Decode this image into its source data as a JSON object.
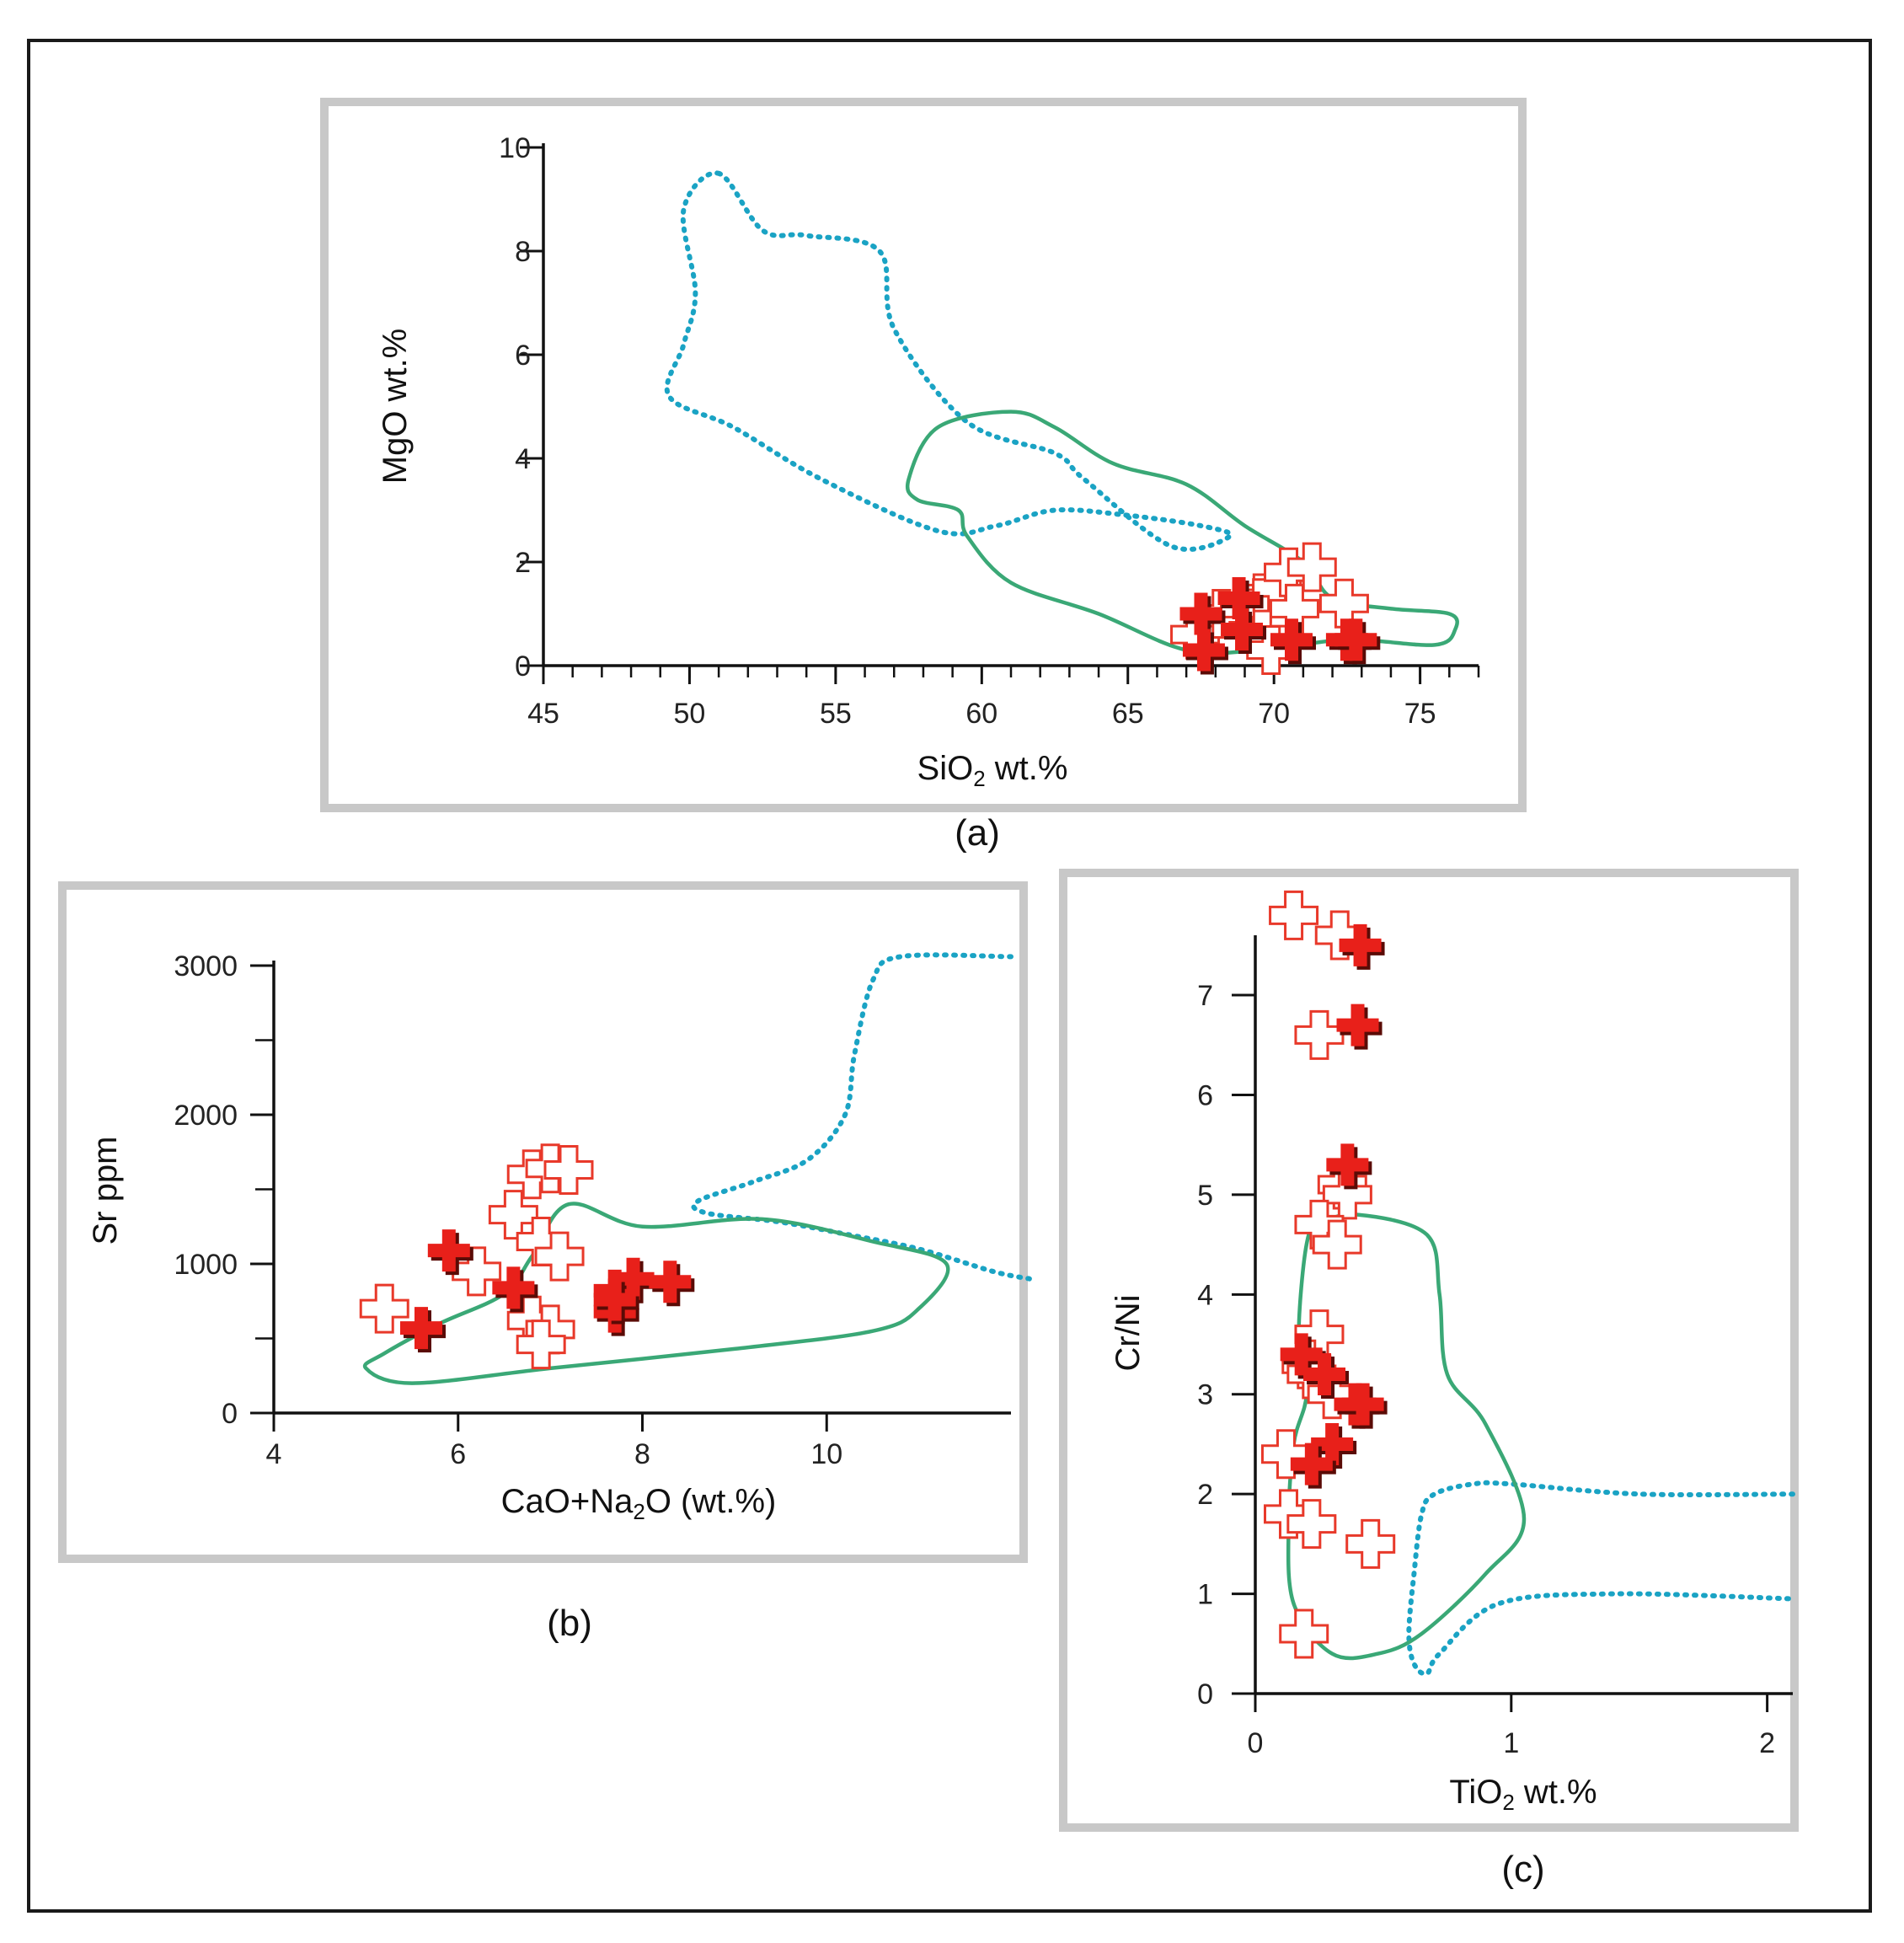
{
  "figure": {
    "captions": {
      "a": "(a)",
      "b": "(b)",
      "c": "(c)"
    },
    "colors": {
      "outer_border": "#1a1a1a",
      "panel_border": "#c8c8c8",
      "field_dotted": "#1aa3c4",
      "field_solid": "#3aa876",
      "marker_open": "#e8392a",
      "marker_filled": "#e8201a",
      "marker_shadow": "#5a0b06"
    }
  },
  "chart_data": [
    {
      "id": "a",
      "type": "scatter",
      "xlabel": {
        "main": "SiO",
        "sub": "2",
        "rest": " wt.%"
      },
      "ylabel": "MgO wt.%",
      "xlim": [
        45,
        77
      ],
      "ylim": [
        0,
        10
      ],
      "xticks": [
        45,
        50,
        55,
        60,
        65,
        70,
        75
      ],
      "xticks_labels": [
        "45",
        "50",
        "55",
        "60",
        "65",
        "70",
        "75"
      ],
      "yticks": [
        0,
        2,
        4,
        6,
        8,
        10
      ],
      "yticks_labels": [
        "0",
        "2",
        "4",
        "6",
        "8",
        "10"
      ],
      "x_minor_step": 1,
      "y_minor_step": null,
      "open_points": [
        [
          67.3,
          0.6
        ],
        [
          68.2,
          1.0
        ],
        [
          69.0,
          1.1
        ],
        [
          69.6,
          1.3
        ],
        [
          70.1,
          1.5
        ],
        [
          70.5,
          1.8
        ],
        [
          71.3,
          1.9
        ],
        [
          70.7,
          1.1
        ],
        [
          69.6,
          0.6
        ],
        [
          69.9,
          0.3
        ],
        [
          72.4,
          1.2
        ]
      ],
      "filled_points": [
        [
          67.5,
          1.0
        ],
        [
          67.6,
          0.3
        ],
        [
          68.8,
          1.3
        ],
        [
          68.9,
          0.7
        ],
        [
          70.6,
          0.5
        ],
        [
          72.5,
          0.5
        ],
        [
          72.8,
          0.5
        ]
      ],
      "dotted_field": [
        [
          51,
          9.5
        ],
        [
          49.8,
          8.8
        ],
        [
          50.2,
          7.2
        ],
        [
          49.8,
          6.2
        ],
        [
          49.3,
          5.2
        ],
        [
          51.5,
          4.6
        ],
        [
          54.5,
          3.6
        ],
        [
          58.5,
          2.6
        ],
        [
          60.5,
          2.7
        ],
        [
          62.5,
          3.0
        ],
        [
          65,
          2.9
        ],
        [
          67.5,
          2.7
        ],
        [
          68.5,
          2.5
        ],
        [
          66.5,
          2.3
        ],
        [
          63.5,
          3.6
        ],
        [
          62.5,
          4.1
        ],
        [
          59.5,
          4.7
        ],
        [
          57,
          6.5
        ],
        [
          56.5,
          8.0
        ],
        [
          54,
          8.3
        ],
        [
          52.5,
          8.4
        ]
      ],
      "solid_field": [
        [
          57.5,
          3.6
        ],
        [
          58.5,
          4.6
        ],
        [
          61,
          4.9
        ],
        [
          62.5,
          4.6
        ],
        [
          64.5,
          3.9
        ],
        [
          67,
          3.5
        ],
        [
          69,
          2.7
        ],
        [
          71,
          2.0
        ],
        [
          72,
          1.3
        ],
        [
          74,
          1.1
        ],
        [
          76,
          1.0
        ],
        [
          76.2,
          0.7
        ],
        [
          75.5,
          0.4
        ],
        [
          72.5,
          0.5
        ],
        [
          69.5,
          0.3
        ],
        [
          67,
          0.3
        ],
        [
          64,
          1.0
        ],
        [
          61,
          1.6
        ],
        [
          59.5,
          2.5
        ],
        [
          59.2,
          3.0
        ],
        [
          57.8,
          3.2
        ]
      ]
    },
    {
      "id": "b",
      "type": "scatter",
      "xlabel": {
        "main": "CaO+Na",
        "sub": "2",
        "rest": "O (wt.%)"
      },
      "ylabel": "Sr ppm",
      "xlim": [
        4,
        12
      ],
      "ylim": [
        0,
        3000
      ],
      "xticks": [
        4,
        6,
        8,
        10
      ],
      "xticks_labels": [
        "4",
        "6",
        "8",
        "10"
      ],
      "yticks": [
        0,
        1000,
        2000,
        3000
      ],
      "yticks_labels": [
        "0",
        "1000",
        "2000",
        "3000"
      ],
      "x_minor_step": null,
      "y_minor_step": 500,
      "open_points": [
        [
          5.2,
          700
        ],
        [
          6.2,
          950
        ],
        [
          6.6,
          1330
        ],
        [
          6.8,
          1600
        ],
        [
          7.0,
          1640
        ],
        [
          7.2,
          1630
        ],
        [
          6.9,
          1150
        ],
        [
          7.1,
          1050
        ],
        [
          6.8,
          620
        ],
        [
          7.0,
          560
        ],
        [
          6.9,
          460
        ]
      ],
      "filled_points": [
        [
          5.6,
          570
        ],
        [
          5.9,
          1090
        ],
        [
          6.6,
          840
        ],
        [
          7.7,
          820
        ],
        [
          7.7,
          680
        ],
        [
          7.9,
          900
        ],
        [
          8.3,
          880
        ],
        [
          7.7,
          760
        ]
      ],
      "dotted_field": [
        [
          12,
          3060
        ],
        [
          10.8,
          3060
        ],
        [
          10.5,
          2900
        ],
        [
          10.3,
          2400
        ],
        [
          10.2,
          2000
        ],
        [
          9.8,
          1700
        ],
        [
          9.2,
          1550
        ],
        [
          8.6,
          1420
        ],
        [
          8.7,
          1340
        ],
        [
          9.5,
          1280
        ],
        [
          10.2,
          1200
        ],
        [
          11,
          1100
        ],
        [
          11.8,
          950
        ],
        [
          12.2,
          900
        ]
      ],
      "solid_field": [
        [
          5.2,
          400
        ],
        [
          5.8,
          600
        ],
        [
          6.5,
          800
        ],
        [
          6.8,
          1050
        ],
        [
          7.2,
          1400
        ],
        [
          8.0,
          1250
        ],
        [
          9.3,
          1300
        ],
        [
          10.5,
          1150
        ],
        [
          11.3,
          1000
        ],
        [
          11.0,
          700
        ],
        [
          10.5,
          550
        ],
        [
          9.0,
          430
        ],
        [
          7.0,
          300
        ],
        [
          5.5,
          200
        ],
        [
          5.0,
          300
        ]
      ]
    },
    {
      "id": "c",
      "type": "scatter",
      "xlabel": {
        "main": "TiO",
        "sub": "2",
        "rest": " wt.%"
      },
      "ylabel": "Cr/Ni",
      "xlim": [
        0,
        2.1
      ],
      "ylim": [
        0,
        7.6
      ],
      "xticks": [
        0,
        1,
        2
      ],
      "xticks_labels": [
        "0",
        "1",
        "2"
      ],
      "yticks": [
        0,
        1,
        2,
        3,
        4,
        5,
        6,
        7
      ],
      "yticks_labels": [
        "0",
        "1",
        "2",
        "3",
        "4",
        "5",
        "6",
        "7"
      ],
      "x_minor_step": null,
      "y_minor_step": null,
      "open_points": [
        [
          0.15,
          7.8
        ],
        [
          0.33,
          7.6
        ],
        [
          0.25,
          6.6
        ],
        [
          0.34,
          5.1
        ],
        [
          0.36,
          5.0
        ],
        [
          0.25,
          4.7
        ],
        [
          0.32,
          4.5
        ],
        [
          0.25,
          3.6
        ],
        [
          0.2,
          3.3
        ],
        [
          0.22,
          3.2
        ],
        [
          0.3,
          3.0
        ],
        [
          0.12,
          2.4
        ],
        [
          0.13,
          1.8
        ],
        [
          0.22,
          1.7
        ],
        [
          0.45,
          1.5
        ],
        [
          0.19,
          0.6
        ]
      ],
      "filled_points": [
        [
          0.41,
          7.5
        ],
        [
          0.4,
          6.7
        ],
        [
          0.36,
          5.3
        ],
        [
          0.18,
          3.4
        ],
        [
          0.27,
          3.2
        ],
        [
          0.39,
          2.9
        ],
        [
          0.42,
          2.9
        ],
        [
          0.3,
          2.5
        ],
        [
          0.22,
          2.3
        ]
      ],
      "dotted_field": [
        [
          2.1,
          2.0
        ],
        [
          1.5,
          2.0
        ],
        [
          1.0,
          2.1
        ],
        [
          0.85,
          2.1
        ],
        [
          0.7,
          2.0
        ],
        [
          0.65,
          1.8
        ],
        [
          0.62,
          1.2
        ],
        [
          0.6,
          0.6
        ],
        [
          0.62,
          0.3
        ],
        [
          0.67,
          0.2
        ],
        [
          0.72,
          0.4
        ],
        [
          0.95,
          0.9
        ],
        [
          1.4,
          1.0
        ],
        [
          2.1,
          0.95
        ]
      ],
      "solid_field": [
        [
          0.2,
          3.0
        ],
        [
          0.17,
          3.6
        ],
        [
          0.2,
          4.5
        ],
        [
          0.25,
          4.7
        ],
        [
          0.4,
          4.8
        ],
        [
          0.67,
          4.6
        ],
        [
          0.72,
          4.0
        ],
        [
          0.75,
          3.2
        ],
        [
          0.9,
          2.7
        ],
        [
          1.05,
          1.75
        ],
        [
          0.9,
          1.2
        ],
        [
          0.65,
          0.6
        ],
        [
          0.48,
          0.4
        ],
        [
          0.3,
          0.4
        ],
        [
          0.15,
          0.9
        ],
        [
          0.13,
          1.7
        ],
        [
          0.15,
          2.5
        ]
      ]
    }
  ]
}
